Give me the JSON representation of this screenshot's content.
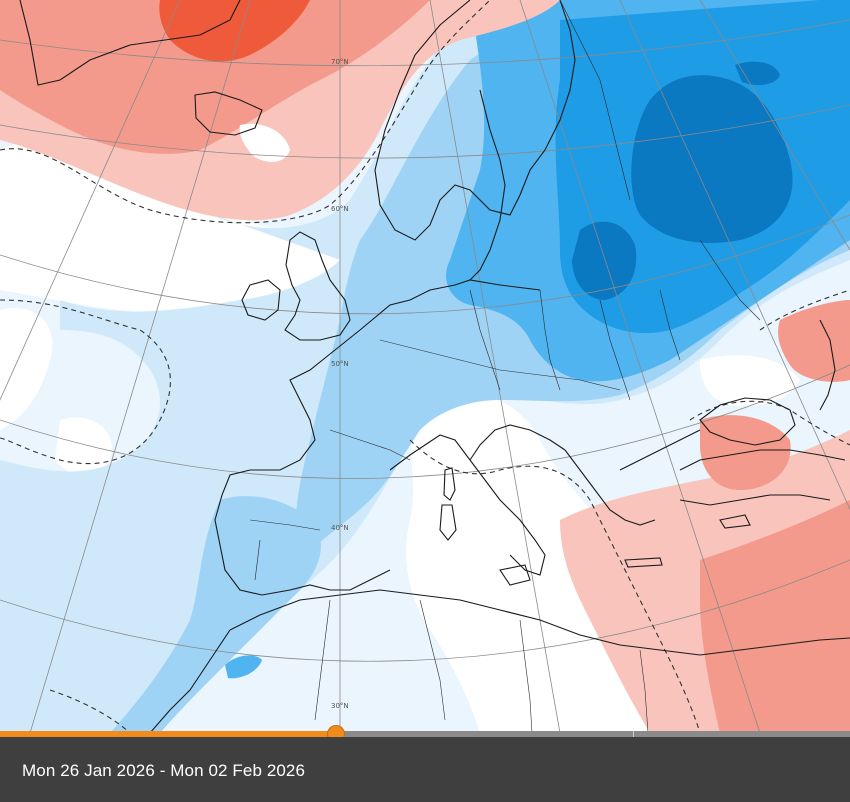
{
  "map": {
    "latitude_labels": [
      "70°N",
      "60°N",
      "50°N",
      "40°N",
      "30°N"
    ],
    "colors": {
      "ocean_base": "#eaf5fd",
      "light_blue": "#cfe9fb",
      "mid_blue": "#9fd3f5",
      "blue": "#4fb4ef",
      "strong_blue": "#1f9ce6",
      "dark_blue": "#0b78c2",
      "light_red": "#f9c4bc",
      "red": "#f39a8c",
      "strong_red": "#ef5a3a",
      "white": "#ffffff"
    }
  },
  "timeline": {
    "progress": 0.395,
    "tick_position": 0.745
  },
  "footer": {
    "date_range": "Mon 26 Jan 2026 - Mon 02 Feb 2026"
  }
}
